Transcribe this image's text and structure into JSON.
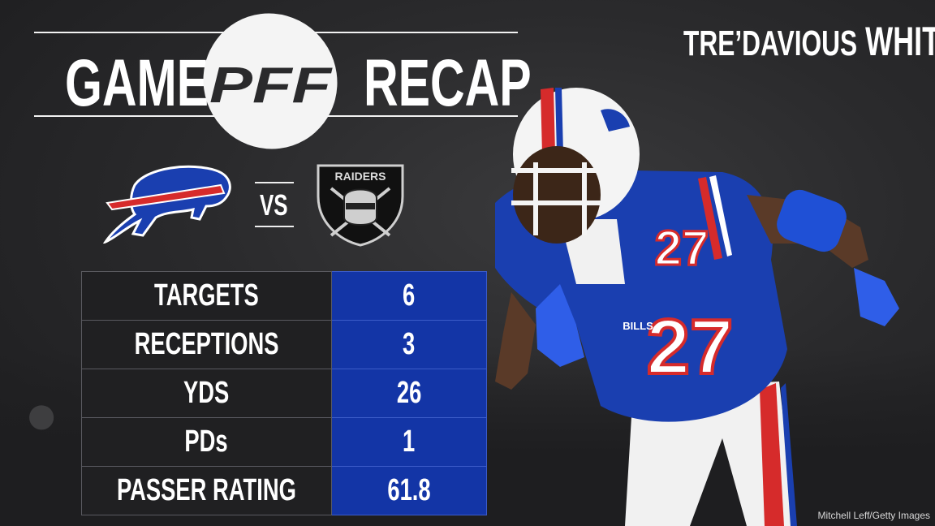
{
  "header": {
    "title_left": "GAME",
    "logo_text": "PFF",
    "title_right": "RECAP",
    "player_first": "TRE’DAVIOUS",
    "player_last": "WHITE"
  },
  "matchup": {
    "home_team_icon": "bills-icon",
    "vs_text": "VS",
    "away_team_icon": "raiders-icon",
    "away_logo_text": "RAIDERS"
  },
  "stats": [
    {
      "label": "TARGETS",
      "value": "6"
    },
    {
      "label": "RECEPTIONS",
      "value": "3"
    },
    {
      "label": "YDS",
      "value": "26"
    },
    {
      "label": "PDs",
      "value": "1"
    },
    {
      "label": "PASSER RATING",
      "value": "61.8"
    }
  ],
  "player_photo": {
    "jersey_number": "27",
    "jersey_text": "BILLS"
  },
  "photo_credit": "Mitchell Leff/Getty Images",
  "colors": {
    "stat_value_bg": "#1335a6",
    "stat_label_bg": "#202022",
    "bills_blue": "#1a3fb0",
    "bills_red": "#d62b2b"
  }
}
